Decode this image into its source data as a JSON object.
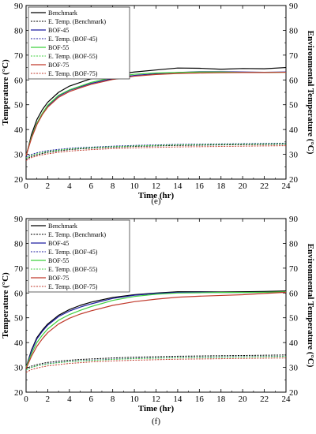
{
  "colors": {
    "benchmark": "#000000",
    "bof45": "#1f1fa0",
    "bof55": "#3fd03f",
    "bof75": "#c0392b"
  },
  "chart_data": [
    {
      "type": "line",
      "panel_label": "(e)",
      "xlabel": "Time (hr)",
      "ylabel": "Temperature (°C)",
      "y2label": "Environmental Temperature (°C)",
      "xlim": [
        0,
        24
      ],
      "ylim": [
        20,
        90
      ],
      "y2lim": [
        20,
        90
      ],
      "xticks": [
        0,
        2,
        4,
        6,
        8,
        10,
        12,
        14,
        16,
        18,
        20,
        22,
        24
      ],
      "yticks": [
        20,
        30,
        40,
        50,
        60,
        70,
        80,
        90
      ],
      "grid": false,
      "legend_position": "top-left",
      "x": [
        0,
        0.5,
        1,
        1.5,
        2,
        3,
        4,
        5,
        6,
        8,
        10,
        12,
        14,
        16,
        18,
        20,
        22,
        24
      ],
      "series": [
        {
          "name": "Benchmark",
          "style": "solid",
          "color_key": "benchmark",
          "values": [
            29,
            38,
            44,
            48,
            51,
            55,
            57.5,
            59,
            60.5,
            62,
            63.2,
            64,
            64.8,
            64.7,
            64.3,
            64.6,
            64.5,
            65
          ]
        },
        {
          "name": "E. Temp. (Benchmark)",
          "style": "dotted",
          "color_key": "benchmark",
          "values": [
            28,
            29.2,
            29.8,
            30.3,
            30.8,
            31.4,
            31.9,
            32.2,
            32.5,
            32.9,
            33.2,
            33.4,
            33.6,
            33.7,
            33.8,
            33.9,
            34,
            34.1
          ]
        },
        {
          "name": "BOF-45",
          "style": "solid",
          "color_key": "bof45",
          "values": [
            29.5,
            37,
            42.5,
            46.5,
            49.5,
            53.5,
            55.8,
            57.2,
            58.6,
            60.5,
            61.8,
            62.5,
            63,
            63.3,
            63.3,
            63.2,
            63.1,
            63.2
          ]
        },
        {
          "name": "E. Temp. (BOF-45)",
          "style": "dotted",
          "color_key": "bof45",
          "values": [
            29,
            30,
            30.6,
            31.1,
            31.5,
            32,
            32.4,
            32.7,
            32.9,
            33.3,
            33.6,
            33.8,
            34,
            34.1,
            34.2,
            34.3,
            34.4,
            34.5
          ]
        },
        {
          "name": "BOF-55",
          "style": "solid",
          "color_key": "bof55",
          "values": [
            29.5,
            37,
            42.5,
            46.5,
            49.8,
            53.8,
            56,
            57.5,
            59,
            61,
            62.3,
            62.8,
            63,
            63.2,
            63.2,
            63,
            63,
            63.1
          ]
        },
        {
          "name": "E. Temp. (BOF-55)",
          "style": "dotted",
          "color_key": "bof55",
          "values": [
            28.5,
            29.6,
            30.2,
            30.7,
            31.1,
            31.7,
            32.1,
            32.4,
            32.7,
            33.1,
            33.4,
            33.6,
            33.8,
            33.9,
            34,
            34.1,
            34.2,
            34.3
          ]
        },
        {
          "name": "BOF-75",
          "style": "solid",
          "color_key": "bof75",
          "values": [
            29.5,
            36.5,
            42,
            46,
            49,
            53,
            55.3,
            56.8,
            58.2,
            60.2,
            61.5,
            62.2,
            62.6,
            62.8,
            62.9,
            63,
            63,
            63.1
          ]
        },
        {
          "name": "E. Temp. (BOF-75)",
          "style": "dotted",
          "color_key": "bof75",
          "values": [
            27.5,
            28.7,
            29.3,
            29.8,
            30.2,
            30.8,
            31.3,
            31.6,
            31.9,
            32.3,
            32.6,
            32.8,
            33,
            33.1,
            33.2,
            33.3,
            33.4,
            33.5
          ]
        }
      ]
    },
    {
      "type": "line",
      "panel_label": "(f)",
      "xlabel": "Time (hr)",
      "ylabel": "Temperature (°C)",
      "y2label": "Environmental Temperature (°C)",
      "xlim": [
        0,
        24
      ],
      "ylim": [
        20,
        90
      ],
      "y2lim": [
        20,
        90
      ],
      "xticks": [
        0,
        2,
        4,
        6,
        8,
        10,
        12,
        14,
        16,
        18,
        20,
        22,
        24
      ],
      "yticks": [
        20,
        30,
        40,
        50,
        60,
        70,
        80,
        90
      ],
      "grid": false,
      "legend_position": "top-left",
      "x": [
        0,
        0.5,
        1,
        1.5,
        2,
        3,
        4,
        5,
        6,
        8,
        10,
        12,
        14,
        16,
        18,
        20,
        22,
        24
      ],
      "series": [
        {
          "name": "Benchmark",
          "style": "solid",
          "color_key": "benchmark",
          "values": [
            30,
            37,
            42,
            45,
            47.5,
            51,
            53.3,
            55,
            56.3,
            58.2,
            59.3,
            60,
            60.5,
            60.5,
            60.4,
            60.5,
            60.6,
            60.8
          ]
        },
        {
          "name": "E. Temp. (Benchmark)",
          "style": "dotted",
          "color_key": "benchmark",
          "values": [
            29.5,
            30.5,
            31.1,
            31.6,
            32,
            32.5,
            32.9,
            33.2,
            33.4,
            33.8,
            34.1,
            34.3,
            34.5,
            34.6,
            34.7,
            34.8,
            34.9,
            35
          ]
        },
        {
          "name": "BOF-45",
          "style": "solid",
          "color_key": "bof45",
          "values": [
            30,
            36.5,
            41.5,
            44.5,
            47,
            50.5,
            52.7,
            54.3,
            55.6,
            57.8,
            59.1,
            59.8,
            60.2,
            60.3,
            60.2,
            60.2,
            60.3,
            60.4
          ]
        },
        {
          "name": "E. Temp. (BOF-45)",
          "style": "dotted",
          "color_key": "bof45",
          "values": [
            29,
            30,
            30.6,
            31.1,
            31.5,
            32,
            32.4,
            32.7,
            32.9,
            33.3,
            33.6,
            33.8,
            34,
            34.1,
            34.2,
            34.3,
            34.4,
            34.5
          ]
        },
        {
          "name": "BOF-55",
          "style": "solid",
          "color_key": "bof55",
          "values": [
            30,
            35.5,
            40,
            43,
            45.5,
            49,
            51.3,
            53,
            54.5,
            57,
            58.6,
            59.5,
            60,
            60.1,
            60.2,
            60.2,
            60.3,
            60.5
          ]
        },
        {
          "name": "E. Temp. (BOF-55)",
          "style": "dotted",
          "color_key": "bof55",
          "values": [
            29,
            30,
            30.6,
            31,
            31.4,
            31.9,
            32.3,
            32.6,
            32.8,
            33.2,
            33.5,
            33.7,
            33.9,
            34,
            34.1,
            34.2,
            34.3,
            34.4
          ]
        },
        {
          "name": "BOF-75",
          "style": "solid",
          "color_key": "bof75",
          "values": [
            29.5,
            34.5,
            38.5,
            41.5,
            44,
            47.5,
            49.8,
            51.5,
            52.8,
            55,
            56.5,
            57.5,
            58.3,
            58.7,
            59,
            59.3,
            59.8,
            60.3
          ]
        },
        {
          "name": "E. Temp. (BOF-75)",
          "style": "dotted",
          "color_key": "bof75",
          "values": [
            28,
            29.1,
            29.7,
            30.2,
            30.6,
            31.1,
            31.6,
            31.9,
            32.2,
            32.6,
            32.9,
            33.1,
            33.3,
            33.4,
            33.5,
            33.6,
            33.7,
            33.8
          ]
        }
      ]
    }
  ]
}
